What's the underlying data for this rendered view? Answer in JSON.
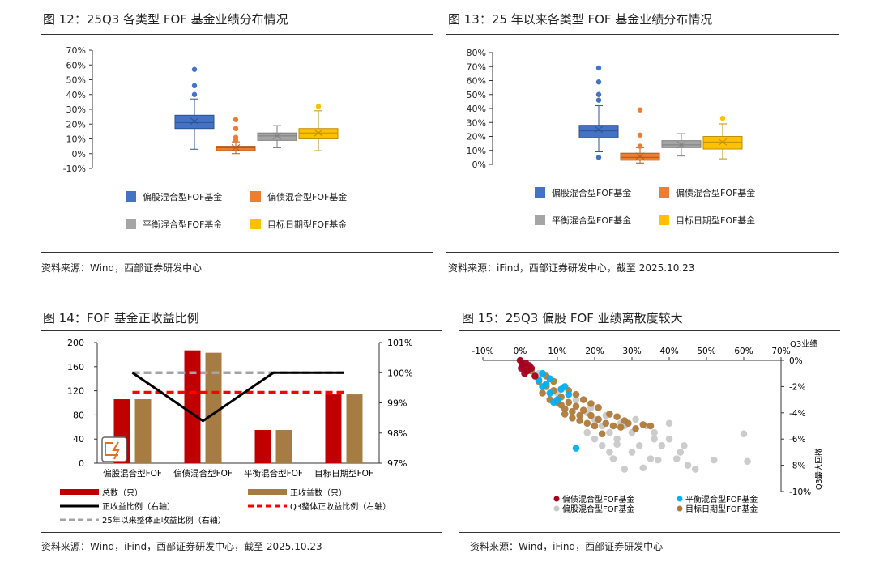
{
  "colors": {
    "blue": "#4472c4",
    "orange": "#ed7d31",
    "gray": "#a5a5a5",
    "gold": "#ffc000",
    "darkred": "#c00000",
    "tan": "#a67c42",
    "black": "#000000",
    "red": "#ff0000",
    "dashgray": "#a5a5a5",
    "teal": "#00b0f0",
    "lightgray": "#c9c9c9",
    "brown": "#b07a3a",
    "maroon": "#a50021"
  },
  "fig12": {
    "title": "图 12：25Q3 各类型 FOF 基金业绩分布情况",
    "source": "资料来源：Wind，西部证券研发中心",
    "chart_data": {
      "type": "boxplot",
      "y_ticks": [
        "70%",
        "60%",
        "50%",
        "40%",
        "30%",
        "20%",
        "10%",
        "0%",
        "-10%"
      ],
      "ylim": [
        -10,
        70
      ],
      "series": [
        {
          "name": "偏股混合型FOF基金",
          "min": 3,
          "q1": 17,
          "median": 21,
          "q3": 26,
          "max": 37,
          "mean": 22,
          "outliers": [
            57,
            46,
            40
          ]
        },
        {
          "name": "偏债混合型FOF基金",
          "min": 0,
          "q1": 2,
          "median": 4,
          "q3": 5,
          "max": 8,
          "mean": 4,
          "outliers": [
            23,
            17,
            11,
            9
          ]
        },
        {
          "name": "平衡混合型FOF基金",
          "min": 4,
          "q1": 9,
          "median": 12,
          "q3": 14,
          "max": 19,
          "mean": 12,
          "outliers": []
        },
        {
          "name": "目标日期型FOF基金",
          "min": 2,
          "q1": 10,
          "median": 14,
          "q3": 17,
          "max": 29,
          "mean": 14,
          "outliers": [
            32
          ]
        }
      ]
    }
  },
  "fig13": {
    "title": "图 13：25 年以来各类型 FOF 基金业绩分布情况",
    "source": "资料来源：iFind，西部证券研发中心，截至 2025.10.23",
    "chart_data": {
      "type": "boxplot",
      "y_ticks": [
        "80%",
        "70%",
        "60%",
        "50%",
        "40%",
        "30%",
        "20%",
        "10%",
        "0%"
      ],
      "ylim": [
        0,
        80
      ],
      "series": [
        {
          "name": "偏股混合型FOF基金",
          "min": 9,
          "q1": 19,
          "median": 24,
          "q3": 28,
          "max": 42,
          "mean": 25,
          "outliers": [
            69,
            59,
            50,
            46,
            5
          ]
        },
        {
          "name": "偏债混合型FOF基金",
          "min": 1,
          "q1": 3,
          "median": 5,
          "q3": 8,
          "max": 12,
          "mean": 6,
          "outliers": [
            39,
            21,
            13
          ]
        },
        {
          "name": "平衡混合型FOF基金",
          "min": 6,
          "q1": 12,
          "median": 14,
          "q3": 17,
          "max": 22,
          "mean": 14,
          "outliers": []
        },
        {
          "name": "目标日期型FOF基金",
          "min": 4,
          "q1": 11,
          "median": 16,
          "q3": 20,
          "max": 29,
          "mean": 16,
          "outliers": [
            33
          ]
        }
      ]
    }
  },
  "fig14": {
    "title": "图 14：FOF 基金正收益比例",
    "source": "资料来源：Wind，iFind，西部证券研发中心，截至 2025.10.23",
    "chart_data": {
      "type": "bar",
      "categories": [
        "偏股混合型FOF",
        "偏债混合型FOF",
        "平衡混合型FOF",
        "目标日期型FOF"
      ],
      "y_ticks": [
        "200",
        "160",
        "120",
        "80",
        "40",
        "0"
      ],
      "y2_ticks": [
        "101%",
        "100%",
        "99%",
        "98%",
        "97%"
      ],
      "ylim": [
        0,
        200
      ],
      "y2lim": [
        97,
        101
      ],
      "series": [
        {
          "name": "总数（只）",
          "values": [
            106,
            187,
            55,
            114
          ]
        },
        {
          "name": "正收益数（只）",
          "values": [
            106,
            183,
            55,
            114
          ]
        },
        {
          "name": "正收益比例（右轴）",
          "values": [
            100,
            98.4,
            100,
            100
          ]
        },
        {
          "name": "Q3整体正收益比例（右轴）",
          "values": [
            99.35,
            99.35,
            99.35,
            99.35
          ]
        },
        {
          "name": "25年以来整体正收益比例（右轴）",
          "values": [
            100,
            100,
            100,
            100
          ]
        }
      ]
    }
  },
  "fig15": {
    "title": "图 15：25Q3 偏股 FOF 业绩离散度较大",
    "source": "资料来源：Wind，iFind，西部证券研发中心",
    "chart_data": {
      "type": "scatter",
      "x_ticks": [
        "-10%",
        "0%",
        "10%",
        "20%",
        "30%",
        "40%",
        "50%",
        "60%",
        "70%"
      ],
      "xlim": [
        -10,
        70
      ],
      "y_ticks": [
        "0%",
        "-2%",
        "-4%",
        "-6%",
        "-8%",
        "-10%"
      ],
      "ylim": [
        -10,
        0
      ],
      "xlabel": "Q3业绩",
      "ylabel": "Q3最大回撤",
      "series": [
        {
          "name": "偏债混合型FOF基金",
          "points": [
            [
              0,
              0
            ],
            [
              0.5,
              -0.3
            ],
            [
              1,
              -0.5
            ],
            [
              1.5,
              -0.2
            ],
            [
              2,
              -0.8
            ],
            [
              0.3,
              -0.6
            ],
            [
              2.5,
              -0.4
            ],
            [
              1.2,
              -1
            ],
            [
              3,
              -0.6
            ],
            [
              4,
              -1.2
            ]
          ]
        },
        {
          "name": "平衡混合型FOF基金",
          "points": [
            [
              5,
              -1.5
            ],
            [
              6,
              -2
            ],
            [
              8,
              -2.5
            ],
            [
              10,
              -3
            ],
            [
              12,
              -2
            ],
            [
              7,
              -1.8
            ],
            [
              13,
              -2.6
            ],
            [
              9,
              -3.2
            ],
            [
              15,
              -6.7
            ],
            [
              6,
              -1
            ],
            [
              11,
              -2.2
            ],
            [
              8,
              -1.4
            ]
          ]
        },
        {
          "name": "偏股混合型FOF基金",
          "points": [
            [
              5,
              -1
            ],
            [
              10,
              -2.5
            ],
            [
              15,
              -3
            ],
            [
              18,
              -4
            ],
            [
              20,
              -4.5
            ],
            [
              22,
              -5
            ],
            [
              24,
              -5.5
            ],
            [
              26,
              -6
            ],
            [
              28,
              -5
            ],
            [
              30,
              -5.5
            ],
            [
              32,
              -6.5
            ],
            [
              34,
              -5
            ],
            [
              36,
              -6
            ],
            [
              38,
              -6.5
            ],
            [
              40,
              -6
            ],
            [
              42,
              -7.5
            ],
            [
              43,
              -7
            ],
            [
              45,
              -8
            ],
            [
              47,
              -8.3
            ],
            [
              60,
              -5.6
            ],
            [
              61,
              -7.7
            ],
            [
              52,
              -7.6
            ],
            [
              33,
              -8.2
            ],
            [
              35,
              -7.5
            ],
            [
              37,
              -7.6
            ],
            [
              28,
              -8.3
            ],
            [
              25,
              -7.5
            ],
            [
              30,
              -7
            ],
            [
              20,
              -6
            ],
            [
              22,
              -6.5
            ],
            [
              18,
              -5.5
            ],
            [
              24,
              -7
            ],
            [
              26,
              -6.4
            ],
            [
              40,
              -4.8
            ],
            [
              44,
              -6.5
            ],
            [
              36,
              -5.5
            ],
            [
              31,
              -4.5
            ],
            [
              27,
              -4.8
            ],
            [
              23,
              -4.2
            ],
            [
              19,
              -3.6
            ]
          ]
        },
        {
          "name": "目标日期型FOF基金",
          "points": [
            [
              3,
              -0.8
            ],
            [
              5,
              -1.6
            ],
            [
              7,
              -2
            ],
            [
              9,
              -2.3
            ],
            [
              11,
              -2.8
            ],
            [
              13,
              -3.2
            ],
            [
              15,
              -3.5
            ],
            [
              17,
              -3.8
            ],
            [
              19,
              -4.2
            ],
            [
              21,
              -4.5
            ],
            [
              23,
              -4.8
            ],
            [
              25,
              -5
            ],
            [
              27,
              -5.1
            ],
            [
              29,
              -4.8
            ],
            [
              31,
              -5.2
            ],
            [
              10,
              -3.2
            ],
            [
              12,
              -3.7
            ],
            [
              14,
              -3.9
            ],
            [
              16,
              -4.6
            ],
            [
              8,
              -3
            ],
            [
              6,
              -2.5
            ],
            [
              18,
              -4.8
            ],
            [
              20,
              -5
            ],
            [
              22,
              -5.6
            ],
            [
              24,
              -4.1
            ],
            [
              26,
              -4.3
            ],
            [
              28,
              -4.6
            ],
            [
              13,
              -2.3
            ],
            [
              15,
              -2.6
            ],
            [
              17,
              -3
            ],
            [
              19,
              -3.3
            ],
            [
              11,
              -3.4
            ],
            [
              7,
              -1.2
            ],
            [
              9,
              -1.6
            ],
            [
              21,
              -3.6
            ],
            [
              33,
              -4.9
            ],
            [
              35,
              -5
            ],
            [
              16,
              -4.2
            ],
            [
              14,
              -4.4
            ],
            [
              12,
              -4.1
            ]
          ]
        }
      ]
    }
  }
}
